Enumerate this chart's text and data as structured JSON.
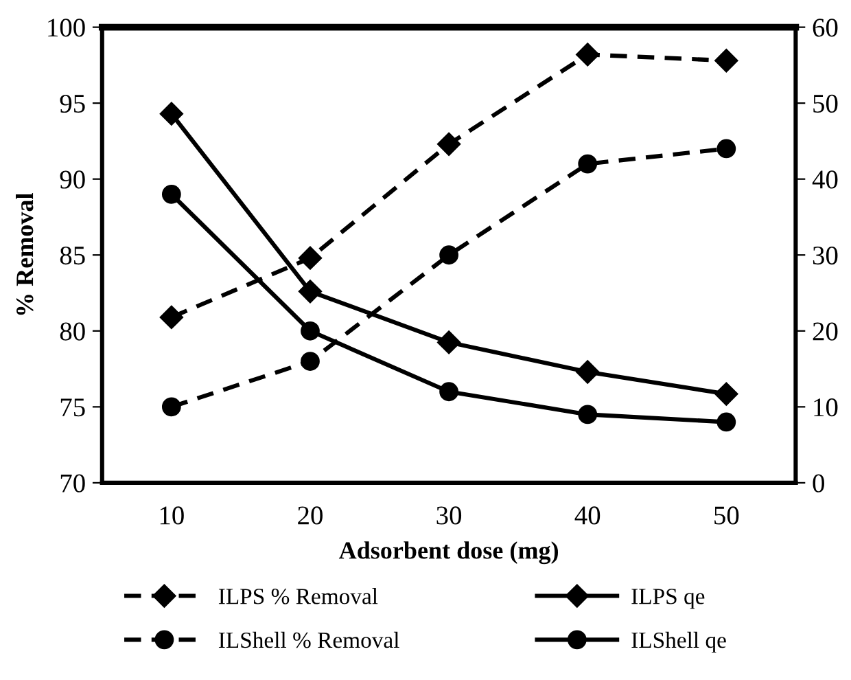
{
  "chart_data": {
    "type": "line",
    "xlabel": "Adsorbent dose (mg)",
    "ylabel": "% Removal",
    "categories": [
      "10",
      "20",
      "30",
      "40",
      "50"
    ],
    "ylim": [
      70,
      100
    ],
    "yticks": [
      70,
      75,
      80,
      85,
      90,
      95,
      100
    ],
    "y2lim": [
      0,
      60
    ],
    "y2ticks": [
      0,
      10,
      20,
      30,
      40,
      50,
      60
    ],
    "grid": false,
    "legend": "bottom",
    "series": [
      {
        "name": "ILPS % Removal",
        "color": "#000000",
        "marker": "diamond",
        "line_style": "dashed",
        "values": [
          80.9,
          84.8,
          92.3,
          98.2,
          97.8
        ]
      },
      {
        "name": "ILShell % Removal",
        "color": "#000000",
        "marker": "circle",
        "line_style": "dashed",
        "values": [
          75,
          78,
          85,
          91,
          92
        ]
      },
      {
        "name": "ILPS qe",
        "color": "#000000",
        "marker": "diamond",
        "line_style": "solid",
        "axis": "y2",
        "values": [
          48.6,
          25.2,
          18.5,
          14.6,
          11.7
        ]
      },
      {
        "name": "ILShell qe",
        "color": "#000000",
        "marker": "circle",
        "line_style": "solid",
        "axis": "y2",
        "values": [
          38,
          20,
          12,
          9,
          8
        ]
      }
    ]
  }
}
